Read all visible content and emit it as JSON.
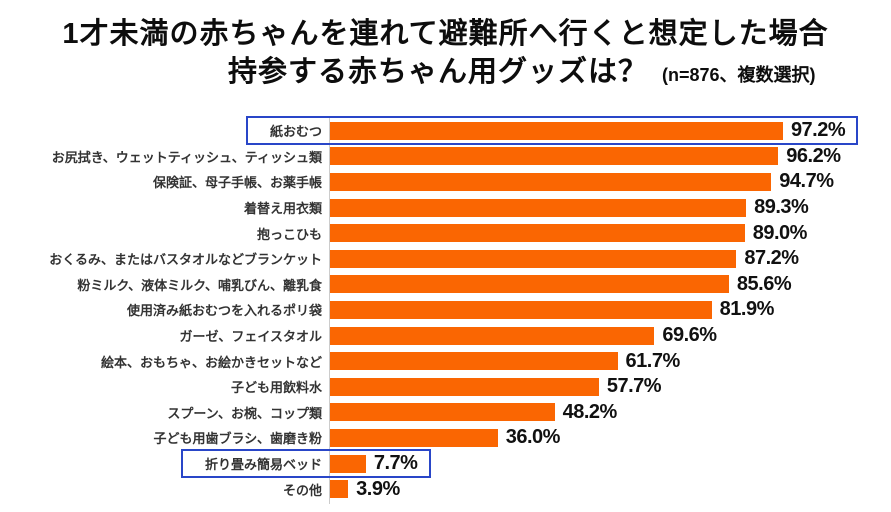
{
  "header": {
    "title_line1": "1才未満の赤ちゃんを連れて避難所へ行くと想定した場合",
    "title_line2": "持参する赤ちゃん用グッズは？",
    "note": "(n=876、複数選択)"
  },
  "chart_data": {
    "type": "bar",
    "orientation": "horizontal",
    "title": "1才未満の赤ちゃんを連れて避難所へ行くと想定した場合 持参する赤ちゃん用グッズは？",
    "note": "(n=876、複数選択)",
    "unit": "%",
    "xlim": [
      0,
      100
    ],
    "grid": false,
    "legend": false,
    "categories": [
      "紙おむつ",
      "お尻拭き、ウェットティッシュ、ティッシュ類",
      "保険証、母子手帳、お薬手帳",
      "着替え用衣類",
      "抱っこひも",
      "おくるみ、またはバスタオルなどブランケット",
      "粉ミルク、液体ミルク、哺乳びん、離乳食",
      "使用済み紙おむつを入れるポリ袋",
      "ガーゼ、フェイスタオル",
      "絵本、おもちゃ、お絵かきセットなど",
      "子ども用飲料水",
      "スプーン、お椀、コップ類",
      "子ども用歯ブラシ、歯磨き粉",
      "折り畳み簡易ベッド",
      "その他"
    ],
    "values": [
      97.2,
      96.2,
      94.7,
      89.3,
      89.0,
      87.2,
      85.6,
      81.9,
      69.6,
      61.7,
      57.7,
      48.2,
      36.0,
      7.7,
      3.9
    ],
    "value_labels": [
      "97.2%",
      "96.2%",
      "94.7%",
      "89.3%",
      "89.0%",
      "87.2%",
      "85.6%",
      "81.9%",
      "69.6%",
      "61.7%",
      "57.7%",
      "48.2%",
      "36.0%",
      "7.7%",
      "3.9%"
    ],
    "highlighted_indices": [
      0,
      13
    ],
    "colors": {
      "bar": "#FA6602",
      "highlight_border": "#2946C8",
      "category_text": "#333333",
      "value_text": "#111111",
      "title_text": "#0D0D0D",
      "axis_line": "#CCCCCC",
      "background": "#FFFFFF"
    }
  }
}
